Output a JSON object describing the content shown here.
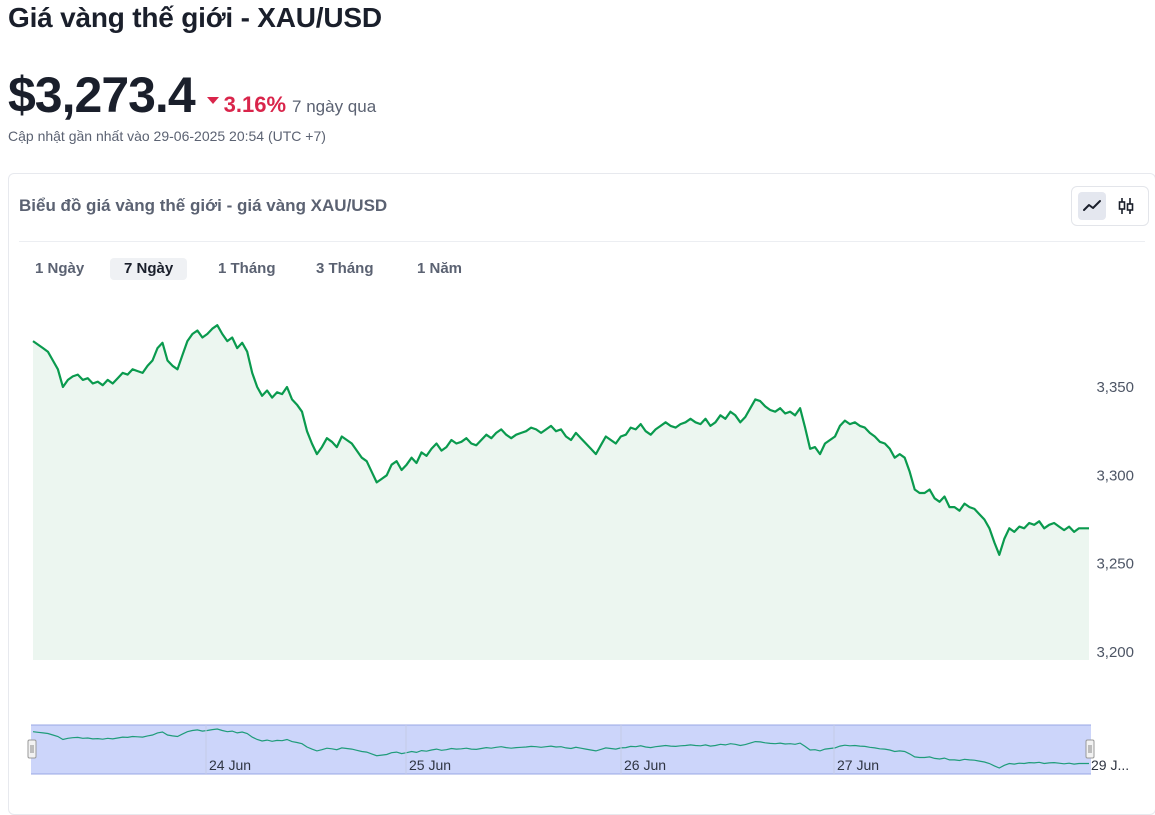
{
  "header": {
    "title": "Giá vàng thế giới - XAU/USD",
    "price": "$3,273.4",
    "change_pct": "3.16%",
    "change_period": "7 ngày qua",
    "updated": "Cập nhật gần nhất vào 29-06-2025 20:54 (UTC +7)"
  },
  "card": {
    "title": "Biểu đồ giá vàng thế giới - giá vàng XAU/USD",
    "tabs": [
      "1 Ngày",
      "7 Ngày",
      "1 Tháng",
      "3 Tháng",
      "1 Năm"
    ],
    "active_tab": "7 Ngày",
    "chart_styles": [
      "line-chart-icon",
      "candlestick-icon"
    ]
  },
  "colors": {
    "line": "#0a9a4e",
    "area": "#ecf6f0",
    "down": "#d9254b",
    "navigator_fill": "#ccd5fa",
    "navigator_border": "#98a7e4"
  },
  "chart_data": {
    "type": "area",
    "ylim": [
      3200,
      3380
    ],
    "yticks": [
      "3,350",
      "3,300",
      "3,250",
      "3,200"
    ],
    "yticks_values": [
      3350,
      3300,
      3250,
      3200
    ],
    "navigator_labels": [
      "24 Jun",
      "25 Jun",
      "26 Jun",
      "27 Jun",
      "29 J..."
    ],
    "series": [
      {
        "values": [
          3376,
          3374,
          3372,
          3370,
          3365,
          3360,
          3350,
          3354,
          3356,
          3357,
          3354,
          3355,
          3352,
          3353,
          3351,
          3354,
          3352,
          3355,
          3358,
          3357,
          3360,
          3359,
          3358,
          3362,
          3365,
          3372,
          3375,
          3365,
          3362,
          3360,
          3368,
          3376,
          3380,
          3382,
          3378,
          3380,
          3383,
          3385,
          3380,
          3376,
          3378,
          3372,
          3375,
          3370,
          3358,
          3350,
          3345,
          3348,
          3344,
          3347,
          3346,
          3350,
          3343,
          3340,
          3336,
          3325,
          3318,
          3312,
          3316,
          3321,
          3319,
          3316,
          3322,
          3320,
          3318,
          3314,
          3310,
          3308,
          3302,
          3296,
          3298,
          3300,
          3306,
          3308,
          3303,
          3306,
          3310,
          3307,
          3313,
          3311,
          3315,
          3318,
          3314,
          3316,
          3320,
          3318,
          3319,
          3321,
          3318,
          3317,
          3320,
          3323,
          3321,
          3324,
          3326,
          3323,
          3321,
          3323,
          3324,
          3325,
          3327,
          3326,
          3324,
          3326,
          3328,
          3325,
          3326,
          3322,
          3320,
          3324,
          3321,
          3318,
          3315,
          3312,
          3317,
          3322,
          3320,
          3318,
          3322,
          3323,
          3327,
          3326,
          3329,
          3325,
          3323,
          3326,
          3328,
          3330,
          3328,
          3327,
          3329,
          3330,
          3332,
          3330,
          3329,
          3332,
          3328,
          3330,
          3334,
          3332,
          3336,
          3334,
          3330,
          3333,
          3338,
          3343,
          3342,
          3339,
          3337,
          3336,
          3338,
          3335,
          3336,
          3334,
          3338,
          3327,
          3315,
          3316,
          3312,
          3318,
          3320,
          3322,
          3328,
          3331,
          3329,
          3330,
          3328,
          3327,
          3324,
          3322,
          3319,
          3318,
          3315,
          3310,
          3312,
          3310,
          3302,
          3292,
          3290,
          3290,
          3292,
          3287,
          3285,
          3288,
          3282,
          3282,
          3280,
          3284,
          3282,
          3281,
          3278,
          3275,
          3270,
          3262,
          3255,
          3264,
          3270,
          3268,
          3271,
          3270,
          3273,
          3272,
          3274,
          3270,
          3272,
          3273,
          3271,
          3269,
          3271,
          3268,
          3270,
          3270,
          3270
        ]
      }
    ]
  }
}
